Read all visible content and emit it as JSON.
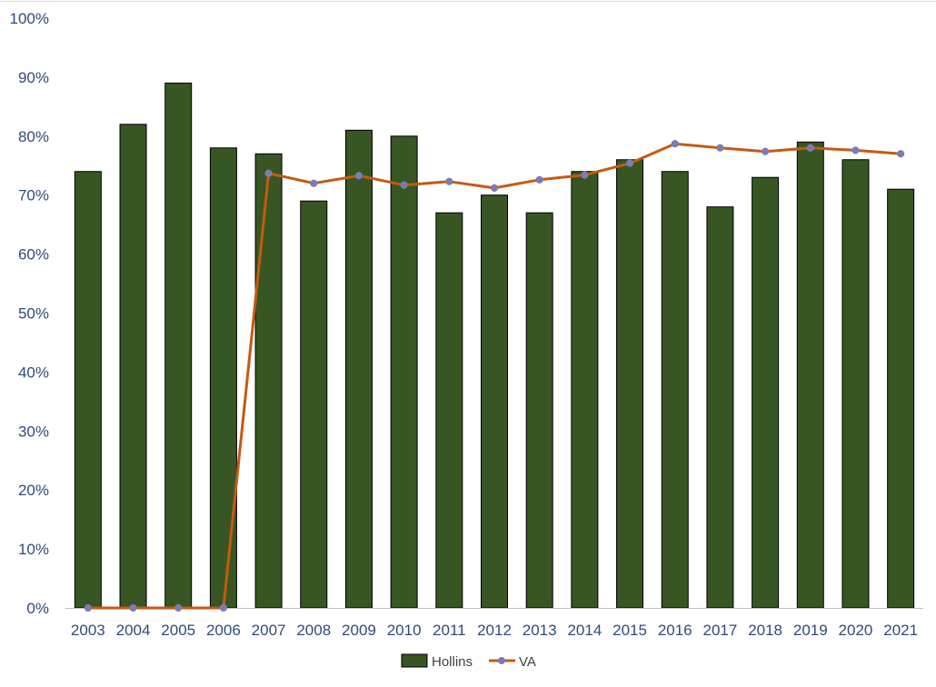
{
  "chart_data": {
    "type": "bar",
    "categories": [
      "2003",
      "2004",
      "2005",
      "2006",
      "2007",
      "2008",
      "2009",
      "2010",
      "2011",
      "2012",
      "2013",
      "2014",
      "2015",
      "2016",
      "2017",
      "2018",
      "2019",
      "2020",
      "2021"
    ],
    "series": [
      {
        "name": "Hollins",
        "type": "bar",
        "values": [
          74,
          82,
          89,
          78,
          77,
          69,
          81,
          80,
          67,
          70,
          67,
          74,
          76,
          74,
          68,
          73,
          79,
          76,
          71
        ]
      },
      {
        "name": "VA",
        "type": "line",
        "values": [
          0,
          0,
          0,
          0,
          73.7,
          72,
          73.3,
          71.7,
          72.3,
          71.2,
          72.6,
          73.4,
          75.4,
          78.7,
          78,
          77.4,
          78,
          77.6,
          77
        ]
      }
    ],
    "ylim": [
      0,
      100
    ],
    "yticks": [
      "0%",
      "10%",
      "20%",
      "30%",
      "40%",
      "50%",
      "60%",
      "70%",
      "80%",
      "90%",
      "100%"
    ],
    "grid": false,
    "legend": "bottom-center",
    "colors": {
      "bar": "#375623",
      "bar_outline": "#000000",
      "line": "#C55A11",
      "marker": "#7C7CB4",
      "tick_text": "#2F4B7C",
      "axis": "#BFBFBF",
      "legend_text": "#404040"
    }
  }
}
